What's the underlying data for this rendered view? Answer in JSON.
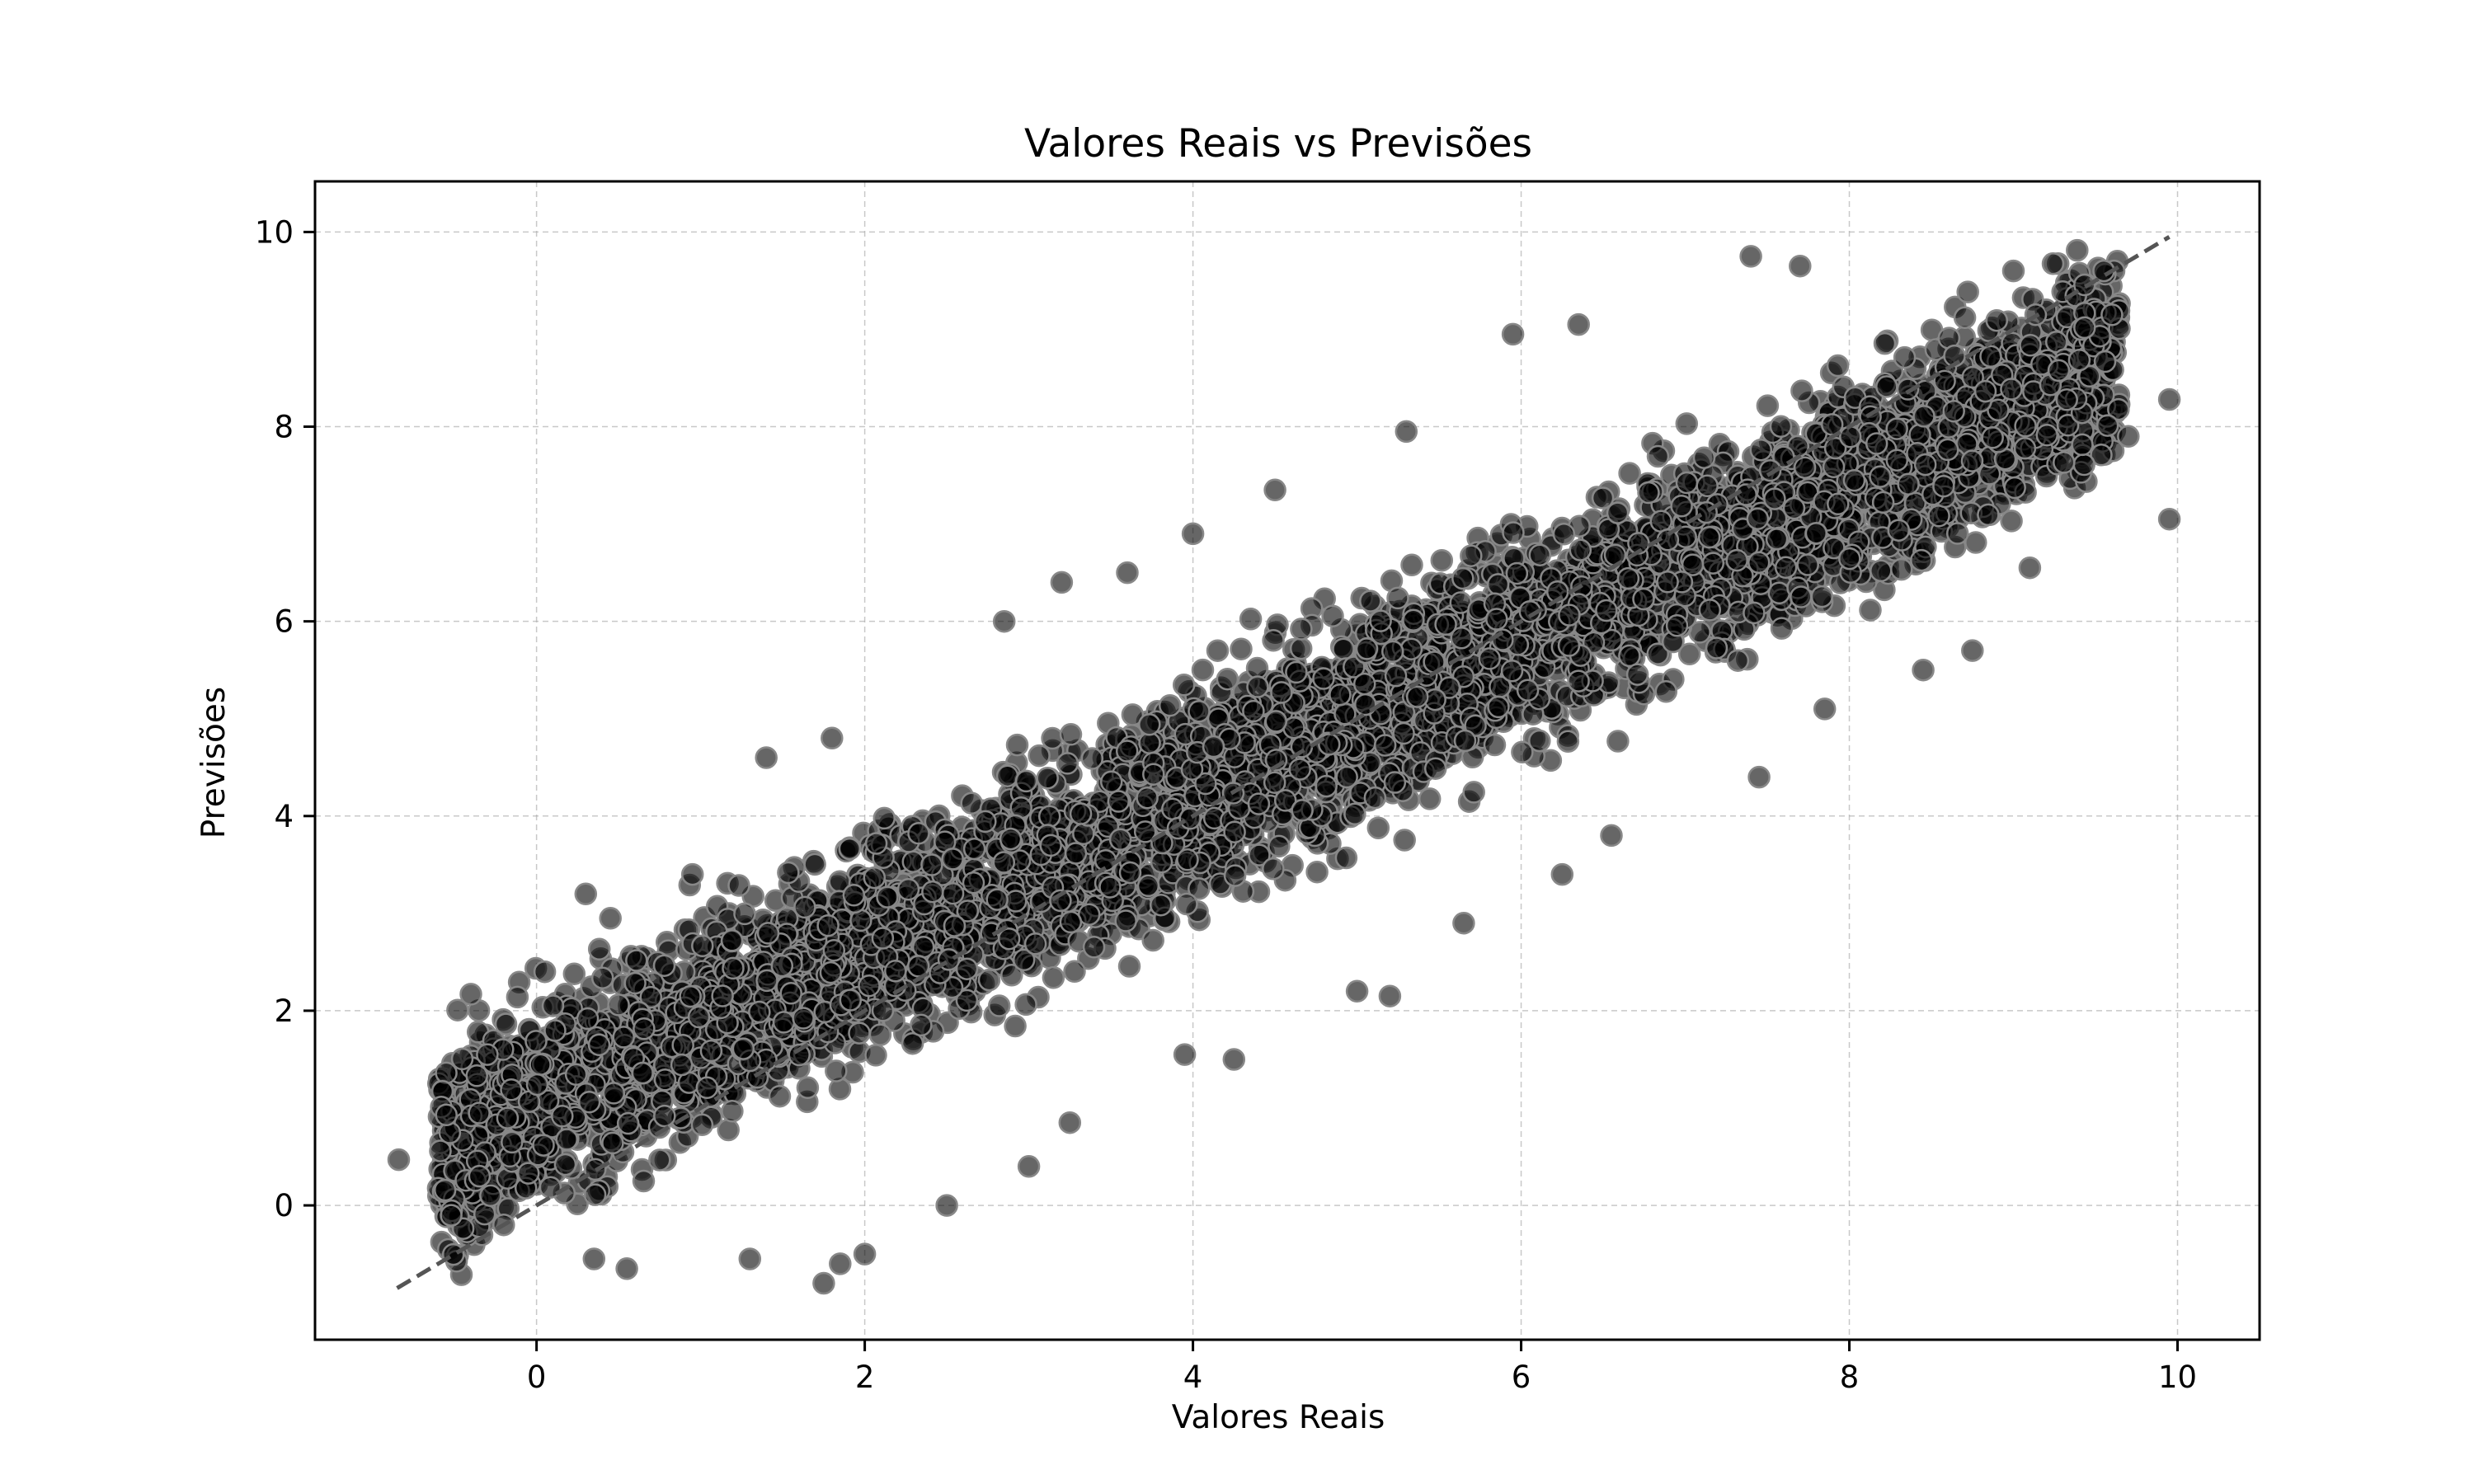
{
  "chart_data": {
    "type": "scatter",
    "title": "Valores Reais vs Previsões",
    "xlabel": "Valores Reais",
    "ylabel": "Previsões",
    "xlim": [
      -1.35,
      10.5
    ],
    "ylim": [
      -1.38,
      10.52
    ],
    "xticks": [
      0,
      2,
      4,
      6,
      8,
      10
    ],
    "yticks": [
      0,
      2,
      4,
      6,
      8,
      10
    ],
    "grid": true,
    "legend": "none",
    "point_color": "#000000",
    "point_alpha": 0.6,
    "point_edge_color": "#888888",
    "reference_line": {
      "style": "dashed",
      "color": "#555555",
      "from": [
        -0.85,
        -0.85
      ],
      "to": [
        9.95,
        9.95
      ]
    },
    "series": [
      {
        "approx_count": 30000,
        "slope": 0.8,
        "intercept": 1.0,
        "band_halfwidth": 1.6,
        "x_range": [
          -0.85,
          9.95
        ],
        "outliers": [
          [
            -0.84,
            0.47
          ],
          [
            -0.55,
            0.93
          ],
          [
            -0.4,
            2.17
          ],
          [
            -0.3,
            1.55
          ],
          [
            -0.2,
            -0.2
          ],
          [
            -0.05,
            0.33
          ],
          [
            0.05,
            2.4
          ],
          [
            0.1,
            2.05
          ],
          [
            0.3,
            3.2
          ],
          [
            0.35,
            -0.55
          ],
          [
            0.45,
            2.95
          ],
          [
            0.55,
            -0.65
          ],
          [
            0.95,
            3.4
          ],
          [
            1.3,
            -0.55
          ],
          [
            1.4,
            4.6
          ],
          [
            1.75,
            -0.8
          ],
          [
            1.8,
            4.8
          ],
          [
            1.85,
            -0.6
          ],
          [
            2.0,
            -0.5
          ],
          [
            2.5,
            0.0
          ],
          [
            2.85,
            6.0
          ],
          [
            3.0,
            0.4
          ],
          [
            3.2,
            6.4
          ],
          [
            3.25,
            0.85
          ],
          [
            3.6,
            6.5
          ],
          [
            3.95,
            1.55
          ],
          [
            4.0,
            6.9
          ],
          [
            4.25,
            1.5
          ],
          [
            4.5,
            7.35
          ],
          [
            5.0,
            2.2
          ],
          [
            5.2,
            2.15
          ],
          [
            5.3,
            7.95
          ],
          [
            5.65,
            2.9
          ],
          [
            5.95,
            8.95
          ],
          [
            6.25,
            3.4
          ],
          [
            6.35,
            9.05
          ],
          [
            6.55,
            3.8
          ],
          [
            7.4,
            9.75
          ],
          [
            7.45,
            4.4
          ],
          [
            7.7,
            9.65
          ],
          [
            7.85,
            5.1
          ],
          [
            8.45,
            5.5
          ],
          [
            8.75,
            5.7
          ],
          [
            9.0,
            9.6
          ],
          [
            9.1,
            6.55
          ],
          [
            9.55,
            9.6
          ],
          [
            9.6,
            9.15
          ],
          [
            9.95,
            8.28
          ],
          [
            9.95,
            7.05
          ],
          [
            9.7,
            7.9
          ]
        ]
      }
    ]
  }
}
